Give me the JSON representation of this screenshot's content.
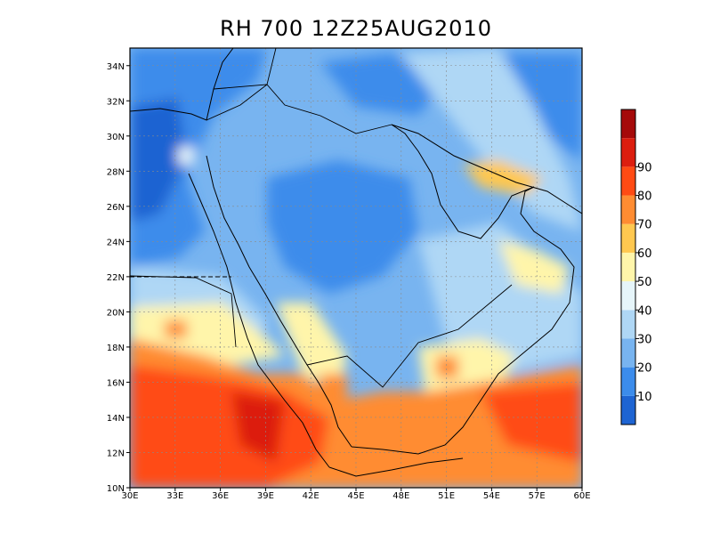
{
  "title": "RH 700 12Z25AUG2010",
  "map": {
    "x_ticks": [
      "30E",
      "33E",
      "36E",
      "39E",
      "42E",
      "45E",
      "48E",
      "51E",
      "54E",
      "57E",
      "60E"
    ],
    "y_ticks": [
      "10N",
      "12N",
      "14N",
      "16N",
      "18N",
      "20N",
      "22N",
      "24N",
      "26N",
      "28N",
      "30N",
      "32N",
      "34N"
    ],
    "lon_range": [
      30,
      60
    ],
    "lat_range": [
      10,
      35
    ],
    "grid": true
  },
  "colorbar": {
    "labels": [
      "10",
      "20",
      "30",
      "40",
      "50",
      "60",
      "70",
      "80",
      "90"
    ],
    "colors": [
      "#1e64d2",
      "#3c8ceb",
      "#78b4f0",
      "#afd7f5",
      "#e6f5fa",
      "#fff5aa",
      "#ffc850",
      "#ff8c32",
      "#ff4b14",
      "#dc1e0f",
      "#a50a0a"
    ]
  }
}
